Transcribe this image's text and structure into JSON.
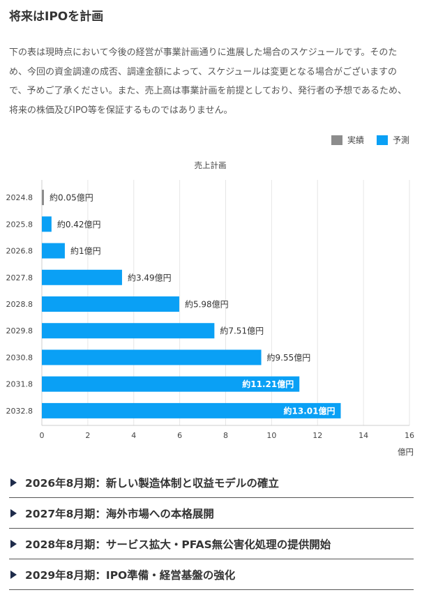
{
  "page": {
    "title": "将来はIPOを計画",
    "description": "下の表は現時点において今後の経営が事業計画通りに進展した場合のスケジュールです。そのため、今回の資金調達の成否、調達金額によって、スケジュールは変更となる場合がございますので、予めご了承ください。また、売上高は事業計画を前提としており、発行者の予想であるため、将来の株価及びIPO等を保証するものではありません。"
  },
  "legend": {
    "items": [
      {
        "label": "実績",
        "color": "#8c8c8c"
      },
      {
        "label": "予測",
        "color": "#0aa0f5"
      }
    ],
    "position": "top-right"
  },
  "chart_data": {
    "type": "bar",
    "orientation": "horizontal",
    "title": "売上計画",
    "xlabel": "億円",
    "ylabel": "",
    "xlim": [
      0,
      16
    ],
    "xticks": [
      0,
      2,
      4,
      6,
      8,
      10,
      12,
      14,
      16
    ],
    "grid": true,
    "categories": [
      "2024.8",
      "2025.8",
      "2026.8",
      "2027.8",
      "2028.8",
      "2029.8",
      "2030.8",
      "2031.8",
      "2032.8"
    ],
    "values": [
      0.05,
      0.42,
      1,
      3.49,
      5.98,
      7.51,
      9.55,
      11.21,
      13.01
    ],
    "kinds": [
      "実績",
      "予測",
      "予測",
      "予測",
      "予測",
      "予測",
      "予測",
      "予測",
      "予測"
    ],
    "data_labels": [
      "約0.05億円",
      "約0.42億円",
      "約1億円",
      "約3.49億円",
      "約5.98億円",
      "約7.51億円",
      "約9.55億円",
      "約11.21億円",
      "約13.01億円"
    ],
    "colors": {
      "actual": "#8c8c8c",
      "forecast": "#0aa0f5"
    }
  },
  "sections": [
    {
      "label": "2026年8月期：新しい製造体制と収益モデルの確立"
    },
    {
      "label": "2027年8月期：海外市場への本格展開"
    },
    {
      "label": "2028年8月期：サービス拡大・PFAS無公害化処理の提供開始"
    },
    {
      "label": "2029年8月期：IPO準備・経営基盤の強化"
    }
  ]
}
